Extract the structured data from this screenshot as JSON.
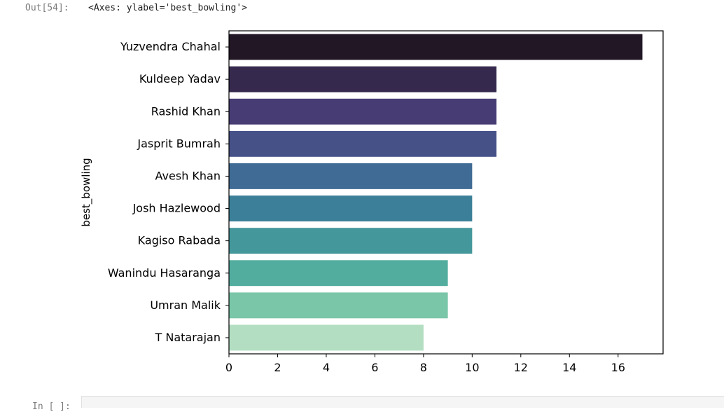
{
  "notebook": {
    "output_prompt": "Out[54]:",
    "output_text": "<Axes: ylabel='best_bowling'>",
    "next_input_prompt": "In [ ]:"
  },
  "chart_data": {
    "type": "bar",
    "orientation": "horizontal",
    "title": "",
    "xlabel": "",
    "ylabel": "best_bowling",
    "categories": [
      "Yuzvendra Chahal",
      "Kuldeep Yadav",
      "Rashid Khan",
      "Jasprit Bumrah",
      "Avesh Khan",
      "Josh Hazlewood",
      "Kagiso Rabada",
      "Wanindu Hasaranga",
      "Umran Malik",
      "T Natarajan"
    ],
    "values": [
      17,
      11,
      11,
      11,
      10,
      10,
      10,
      9,
      9,
      8
    ],
    "colors": [
      "#221725",
      "#352a4d",
      "#473c74",
      "#455187",
      "#3f6b94",
      "#3b8098",
      "#44979b",
      "#52ad9f",
      "#79c6a8",
      "#b3dec2"
    ],
    "xlim": [
      0,
      17.85
    ],
    "xticks": [
      0,
      2,
      4,
      6,
      8,
      10,
      12,
      14,
      16
    ],
    "grid": false,
    "legend": "none"
  }
}
